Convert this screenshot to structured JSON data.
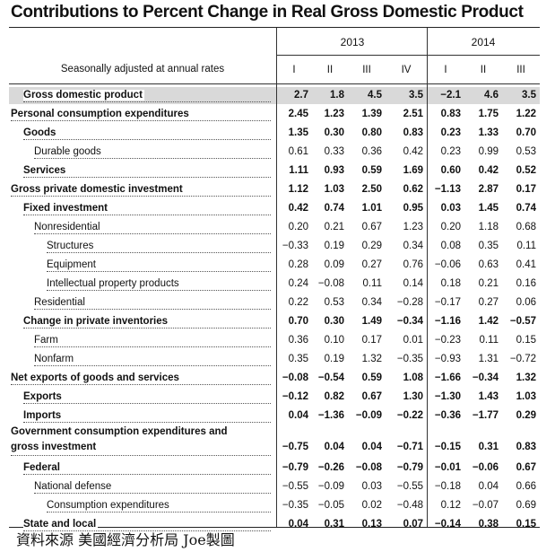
{
  "title": "Contributions to Percent Change in Real Gross Domestic Product",
  "header": {
    "row_label": "Seasonally adjusted at annual rates",
    "years": [
      "2013",
      "2014"
    ],
    "quarters": [
      "I",
      "II",
      "III",
      "IV",
      "I",
      "II",
      "III"
    ]
  },
  "rows": [
    {
      "label": "Gross domestic product",
      "indent": 1,
      "bold": true,
      "shaded": true,
      "values": [
        "2.7",
        "1.8",
        "4.5",
        "3.5",
        "−2.1",
        "4.6",
        "3.5"
      ]
    },
    {
      "label": "Personal consumption expenditures",
      "indent": 0,
      "bold": true,
      "shaded": false,
      "values": [
        "2.45",
        "1.23",
        "1.39",
        "2.51",
        "0.83",
        "1.75",
        "1.22"
      ]
    },
    {
      "label": "Goods",
      "indent": 1,
      "bold": true,
      "shaded": false,
      "values": [
        "1.35",
        "0.30",
        "0.80",
        "0.83",
        "0.23",
        "1.33",
        "0.70"
      ]
    },
    {
      "label": "Durable goods",
      "indent": 2,
      "bold": false,
      "shaded": false,
      "values": [
        "0.61",
        "0.33",
        "0.36",
        "0.42",
        "0.23",
        "0.99",
        "0.53"
      ]
    },
    {
      "label": "Services",
      "indent": 1,
      "bold": true,
      "shaded": false,
      "values": [
        "1.11",
        "0.93",
        "0.59",
        "1.69",
        "0.60",
        "0.42",
        "0.52"
      ]
    },
    {
      "label": "Gross private domestic investment",
      "indent": 0,
      "bold": true,
      "shaded": false,
      "values": [
        "1.12",
        "1.03",
        "2.50",
        "0.62",
        "−1.13",
        "2.87",
        "0.17"
      ]
    },
    {
      "label": "Fixed investment",
      "indent": 1,
      "bold": true,
      "shaded": false,
      "values": [
        "0.42",
        "0.74",
        "1.01",
        "0.95",
        "0.03",
        "1.45",
        "0.74"
      ]
    },
    {
      "label": "Nonresidential",
      "indent": 2,
      "bold": false,
      "shaded": false,
      "values": [
        "0.20",
        "0.21",
        "0.67",
        "1.23",
        "0.20",
        "1.18",
        "0.68"
      ]
    },
    {
      "label": "Structures",
      "indent": 3,
      "bold": false,
      "shaded": false,
      "values": [
        "−0.33",
        "0.19",
        "0.29",
        "0.34",
        "0.08",
        "0.35",
        "0.11"
      ]
    },
    {
      "label": "Equipment",
      "indent": 3,
      "bold": false,
      "shaded": false,
      "values": [
        "0.28",
        "0.09",
        "0.27",
        "0.76",
        "−0.06",
        "0.63",
        "0.41"
      ]
    },
    {
      "label": "Intellectual property products",
      "indent": 3,
      "bold": false,
      "shaded": false,
      "values": [
        "0.24",
        "−0.08",
        "0.11",
        "0.14",
        "0.18",
        "0.21",
        "0.16"
      ]
    },
    {
      "label": "Residential",
      "indent": 2,
      "bold": false,
      "shaded": false,
      "values": [
        "0.22",
        "0.53",
        "0.34",
        "−0.28",
        "−0.17",
        "0.27",
        "0.06"
      ]
    },
    {
      "label": "Change in private inventories",
      "indent": 1,
      "bold": true,
      "shaded": false,
      "values": [
        "0.70",
        "0.30",
        "1.49",
        "−0.34",
        "−1.16",
        "1.42",
        "−0.57"
      ]
    },
    {
      "label": "Farm",
      "indent": 2,
      "bold": false,
      "shaded": false,
      "values": [
        "0.36",
        "0.10",
        "0.17",
        "0.01",
        "−0.23",
        "0.11",
        "0.15"
      ]
    },
    {
      "label": "Nonfarm",
      "indent": 2,
      "bold": false,
      "shaded": false,
      "values": [
        "0.35",
        "0.19",
        "1.32",
        "−0.35",
        "−0.93",
        "1.31",
        "−0.72"
      ]
    },
    {
      "label": "Net exports of goods and services",
      "indent": 0,
      "bold": true,
      "shaded": false,
      "values": [
        "−0.08",
        "−0.54",
        "0.59",
        "1.08",
        "−1.66",
        "−0.34",
        "1.32"
      ]
    },
    {
      "label": "Exports",
      "indent": 1,
      "bold": true,
      "shaded": false,
      "values": [
        "−0.12",
        "0.82",
        "0.67",
        "1.30",
        "−1.30",
        "1.43",
        "1.03"
      ]
    },
    {
      "label": "Imports",
      "indent": 1,
      "bold": true,
      "shaded": false,
      "values": [
        "0.04",
        "−1.36",
        "−0.09",
        "−0.22",
        "−0.36",
        "−1.77",
        "0.29"
      ]
    },
    {
      "label": "Government consumption expenditures and",
      "label2": "gross investment",
      "indent": 0,
      "bold": true,
      "shaded": false,
      "values": [
        "−0.75",
        "0.04",
        "0.04",
        "−0.71",
        "−0.15",
        "0.31",
        "0.83"
      ]
    },
    {
      "label": "Federal",
      "indent": 1,
      "bold": true,
      "shaded": false,
      "values": [
        "−0.79",
        "−0.26",
        "−0.08",
        "−0.79",
        "−0.01",
        "−0.06",
        "0.67"
      ]
    },
    {
      "label": "National defense",
      "indent": 2,
      "bold": false,
      "shaded": false,
      "values": [
        "−0.55",
        "−0.09",
        "0.03",
        "−0.55",
        "−0.18",
        "0.04",
        "0.66"
      ]
    },
    {
      "label": "Consumption expenditures",
      "indent": 3,
      "bold": false,
      "shaded": false,
      "values": [
        "−0.35",
        "−0.05",
        "0.02",
        "−0.48",
        "0.12",
        "−0.07",
        "0.69"
      ]
    },
    {
      "label": "State and local",
      "indent": 1,
      "bold": true,
      "shaded": false,
      "values": [
        "0.04",
        "0.31",
        "0.13",
        "0.07",
        "−0.14",
        "0.38",
        "0.15"
      ]
    }
  ],
  "footer": "資料來源 美國經濟分析局 Joe製圖"
}
